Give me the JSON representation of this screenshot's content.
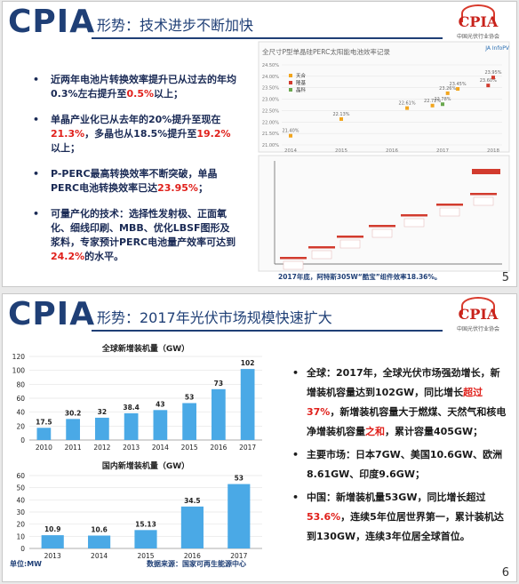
{
  "header": {
    "logo_text": "CPIA"
  },
  "slide1": {
    "title": "形势：技术进步不断加快",
    "logo": {
      "text": "CPIA",
      "sub": "中国光伏行业协会"
    },
    "page_number": "5",
    "bullets": [
      {
        "parts": [
          [
            "近两年电池片转换效率提升已从过去的年均0.3%左右提升至",
            "n"
          ],
          [
            "0.5%",
            "r"
          ],
          [
            "以上；",
            "n"
          ]
        ]
      },
      {
        "parts": [
          [
            "单晶产业化已从去年的20%提升至现在",
            "n"
          ],
          [
            "21.3%",
            "r"
          ],
          [
            "，多晶也从18.5%提升至",
            "n"
          ],
          [
            "19.2%",
            "r"
          ],
          [
            "以上；",
            "n"
          ]
        ]
      },
      {
        "parts": [
          [
            "P-PERC最高转换效率不断突破，单晶PERC电池转换效率已达",
            "n"
          ],
          [
            "23.95%",
            "r"
          ],
          [
            "；",
            "n"
          ]
        ]
      },
      {
        "parts": [
          [
            "可量产化的技术：选择性发射极、正面氧化、细线印刷、MBB、优化LBSF图形及浆料，专家预计PERC电池量产效率可达到",
            "n"
          ],
          [
            "24.2%",
            "r"
          ],
          [
            "的水平。",
            "n"
          ]
        ]
      }
    ],
    "panel_title": "全尺寸P型单晶硅PERC太阳能电池效率记录",
    "panel_logos": "JA  InfoPV",
    "footnote": "2017年底，阿特斯305W“酷宝”组件效率18.36%。"
  },
  "slide2": {
    "title": "形势：2017年光伏市场规模快速扩大",
    "logo": {
      "text": "CPIA",
      "sub": "中国光伏行业协会"
    },
    "page_number": "6",
    "unit_label": "单位:MW",
    "source_label": "数据来源：国家可再生能源中心",
    "bullets": [
      {
        "parts": [
          [
            "全球：2017年，全球光伏市场强劲增长，新增装机容量达到102GW，同比增长",
            "n"
          ],
          [
            "超过37%",
            "r"
          ],
          [
            "，新增装机容量大于燃煤、天然气和核电净增装机容量",
            "n"
          ],
          [
            "之和",
            "r"
          ],
          [
            "，累计容量405GW；",
            "n"
          ]
        ]
      },
      {
        "parts": [
          [
            "主要市场：日本7GW、美国10.6GW、欧洲8.61GW、印度9.6GW；",
            "n"
          ]
        ]
      },
      {
        "parts": [
          [
            "中国：新增装机量53GW，同比增长超过",
            "n"
          ],
          [
            "53.6%",
            "r"
          ],
          [
            "，连续5年位居世界第一，累计装机达到130GW，连续3年位居全球首位。",
            "n"
          ]
        ]
      }
    ]
  },
  "chart_data": [
    {
      "type": "scatter",
      "title": "全尺寸P型单晶硅PERC太阳能电池效率记录",
      "x_ticks": [
        "2014",
        "2015",
        "2016",
        "2017",
        "2018"
      ],
      "y_ticks": [
        "21.00%",
        "21.50%",
        "22.00%",
        "22.50%",
        "23.00%",
        "23.50%",
        "24.00%",
        "24.50%"
      ],
      "ylim": [
        21.0,
        24.5
      ],
      "legend": [
        "天合",
        "隆基",
        "晶科"
      ],
      "points": [
        {
          "series": "天合",
          "x": 2014.0,
          "y": 21.4,
          "label": "21.40%"
        },
        {
          "series": "天合",
          "x": 2015.0,
          "y": 22.13,
          "label": "22.13%"
        },
        {
          "series": "天合",
          "x": 2016.3,
          "y": 22.61,
          "label": "22.61%"
        },
        {
          "series": "天合",
          "x": 2016.8,
          "y": 22.72,
          "label": "22.72%"
        },
        {
          "series": "晶科",
          "x": 2017.0,
          "y": 22.78,
          "label": "22.78%"
        },
        {
          "series": "天合",
          "x": 2017.1,
          "y": 23.26,
          "label": "23.26%"
        },
        {
          "series": "天合",
          "x": 2017.3,
          "y": 23.45,
          "label": "23.45%"
        },
        {
          "series": "隆基",
          "x": 2017.9,
          "y": 23.6,
          "label": "23.60%"
        },
        {
          "series": "隆基",
          "x": 2018.0,
          "y": 23.95,
          "label": "23.95%"
        }
      ]
    },
    {
      "type": "bar",
      "title": "全球新增装机量（GW）",
      "categories": [
        "2010",
        "2011",
        "2012",
        "2013",
        "2014",
        "2015",
        "2016",
        "2017"
      ],
      "values": [
        17.5,
        30.2,
        32,
        38.4,
        43,
        53,
        73,
        102
      ],
      "value_labels": [
        "17.5",
        "30.2",
        "32",
        "38.4",
        "43",
        "53",
        "73",
        "102"
      ],
      "ylim": [
        0,
        120
      ],
      "y_ticks": [
        "0",
        "20",
        "40",
        "60",
        "80",
        "100",
        "120"
      ],
      "color": "#4aa9e6"
    },
    {
      "type": "bar",
      "title": "国内新增装机量（GW）",
      "categories": [
        "2013",
        "2014",
        "2015",
        "2016",
        "2017"
      ],
      "values": [
        10.9,
        10.6,
        15.13,
        34.5,
        53
      ],
      "value_labels": [
        "10.9",
        "10.6",
        "15.13",
        "34.5",
        "53"
      ],
      "ylim": [
        0,
        60
      ],
      "y_ticks": [
        "0",
        "10",
        "20",
        "30",
        "40",
        "50",
        "60"
      ],
      "color": "#4aa9e6"
    }
  ]
}
